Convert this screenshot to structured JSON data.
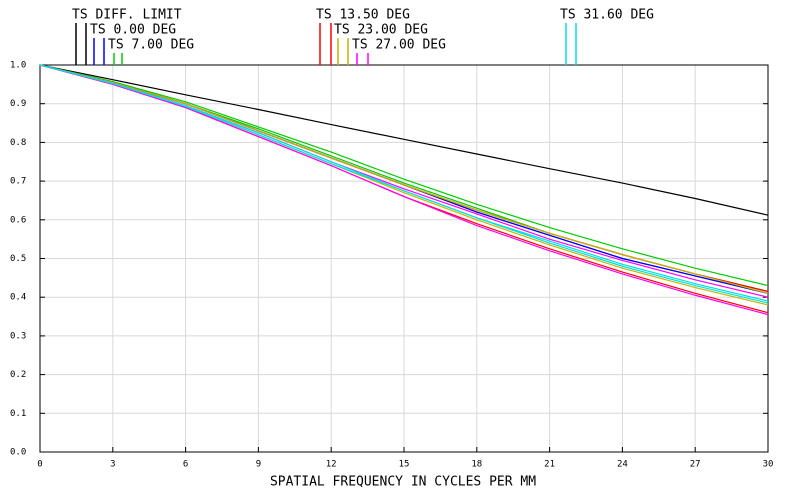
{
  "chart_data": {
    "type": "line",
    "xlabel": "SPATIAL FREQUENCY IN CYCLES PER MM",
    "x": [
      0,
      3,
      6,
      9,
      12,
      15,
      18,
      21,
      24,
      27,
      30
    ],
    "xlim": [
      0,
      30
    ],
    "ylim": [
      0,
      1
    ],
    "xticks": [
      0,
      3,
      6,
      9,
      12,
      15,
      18,
      21,
      24,
      27,
      30
    ],
    "yticks": [
      {
        "value": 0,
        "label": "0.0"
      },
      {
        "value": 0.1,
        "label": "0.1"
      },
      {
        "value": 0.2,
        "label": "0.2"
      },
      {
        "value": 0.3,
        "label": "0.3"
      },
      {
        "value": 0.4,
        "label": "0.4"
      },
      {
        "value": 0.5,
        "label": "0.5"
      },
      {
        "value": 0.6,
        "label": "0.6"
      },
      {
        "value": 0.7,
        "label": "0.7"
      },
      {
        "value": 0.8,
        "label": "0.8"
      },
      {
        "value": 0.9,
        "label": "0.9"
      },
      {
        "value": 1,
        "label": "1.0"
      }
    ],
    "grid": true,
    "series": [
      {
        "name": "TS DIFF. LIMIT",
        "color": "#000000",
        "values": [
          1,
          0.962,
          0.923,
          0.885,
          0.846,
          0.808,
          0.77,
          0.732,
          0.695,
          0.655,
          0.612
        ]
      },
      {
        "name": "TS 0.00 DEG",
        "color": "#0000ff",
        "values": [
          1,
          0.955,
          0.9,
          0.83,
          0.76,
          0.69,
          0.62,
          0.56,
          0.5,
          0.455,
          0.41
        ],
        "sagittal": [
          1,
          0.955,
          0.9,
          0.83,
          0.76,
          0.69,
          0.62,
          0.56,
          0.5,
          0.455,
          0.41
        ]
      },
      {
        "name": "TS 7.00 DEG",
        "color": "#00cc00",
        "values": [
          1,
          0.957,
          0.905,
          0.84,
          0.775,
          0.705,
          0.64,
          0.58,
          0.525,
          0.475,
          0.43
        ],
        "sagittal": [
          1,
          0.955,
          0.9,
          0.835,
          0.765,
          0.695,
          0.63,
          0.565,
          0.51,
          0.46,
          0.415
        ]
      },
      {
        "name": "TS 13.50 DEG",
        "color": "#ff0000",
        "values": [
          1,
          0.955,
          0.9,
          0.83,
          0.76,
          0.69,
          0.625,
          0.565,
          0.51,
          0.46,
          0.415
        ],
        "sagittal": [
          1,
          0.95,
          0.89,
          0.815,
          0.74,
          0.66,
          0.59,
          0.525,
          0.465,
          0.41,
          0.36
        ]
      },
      {
        "name": "TS 23.00 DEG",
        "color": "#c8b400",
        "values": [
          1,
          0.955,
          0.9,
          0.83,
          0.76,
          0.69,
          0.625,
          0.565,
          0.51,
          0.46,
          0.41
        ],
        "sagittal": [
          1,
          0.952,
          0.893,
          0.82,
          0.745,
          0.67,
          0.6,
          0.535,
          0.475,
          0.425,
          0.38
        ]
      },
      {
        "name": "TS 27.00 DEG",
        "color": "#ff00ff",
        "values": [
          1,
          0.953,
          0.895,
          0.825,
          0.75,
          0.68,
          0.615,
          0.55,
          0.495,
          0.445,
          0.4
        ],
        "sagittal": [
          1,
          0.95,
          0.89,
          0.815,
          0.74,
          0.66,
          0.585,
          0.52,
          0.46,
          0.405,
          0.355
        ]
      },
      {
        "name": "TS 31.60 DEG",
        "color": "#00e0e0",
        "values": [
          1,
          0.952,
          0.893,
          0.82,
          0.745,
          0.675,
          0.605,
          0.54,
          0.48,
          0.43,
          0.385
        ],
        "sagittal": [
          1,
          0.953,
          0.895,
          0.825,
          0.75,
          0.675,
          0.605,
          0.545,
          0.485,
          0.435,
          0.39
        ]
      }
    ]
  }
}
